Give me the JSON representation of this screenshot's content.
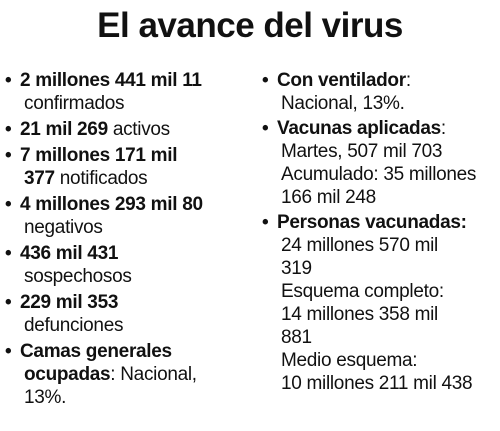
{
  "title": "El avance del virus",
  "bullet": "•",
  "left": {
    "confirmados": {
      "value_a": "2 millones 441 mil 11",
      "label": "confirmados"
    },
    "activos": {
      "value": "21 mil 269",
      "label": " activos"
    },
    "notificados": {
      "value_a": "7 millones 171 mil",
      "value_b": "377",
      "label": " notificados"
    },
    "negativos": {
      "value_a": "4 millones 293 mil 80",
      "label": "negativos"
    },
    "sospechosos": {
      "value_a": "436 mil 431",
      "label": "sospechosos"
    },
    "defunciones": {
      "value_a": "229 mil 353",
      "label": "defunciones"
    },
    "camas": {
      "label_a": "Camas generales",
      "label_b": "ocupadas",
      "colon": ":",
      "value": " Nacional,",
      "value_b": "13%."
    }
  },
  "right": {
    "ventilador": {
      "label": "Con ventilador",
      "colon": ":",
      "value": "Nacional, 13%."
    },
    "vacunas": {
      "label": "Vacunas aplicadas",
      "colon": ":",
      "martes": "Martes, 507 mil 703",
      "acumulado_a": "Acumulado: 35 millones",
      "acumulado_b": "166 mil 248"
    },
    "personas": {
      "label": "Personas vacunadas:",
      "total_a": "24 millones 570 mil",
      "total_b": "319",
      "completo_label": "Esquema completo:",
      "completo_a": "14 millones 358 mil",
      "completo_b": "881",
      "medio_label": "Medio esquema:",
      "medio_a": "10 millones 211 mil 438"
    }
  }
}
